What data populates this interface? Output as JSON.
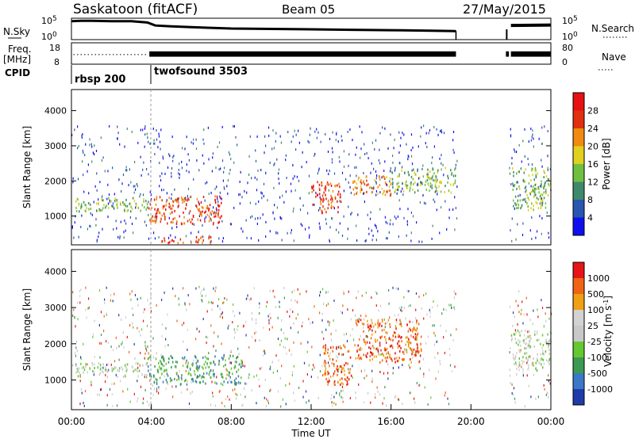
{
  "header": {
    "station": "Saskatoon (fitACF)",
    "beam": "Beam 05",
    "date": "27/May/2015"
  },
  "chart_data": [
    {
      "type": "line",
      "panel": "noise",
      "left_label": "N.Sky",
      "right_label": "N.Search",
      "left_ticks": [
        {
          "exp": "5",
          "text": "10^5",
          "y": 5
        },
        {
          "exp": "0",
          "text": "10^0",
          "y": 0
        }
      ],
      "right_ticks": [
        {
          "exp": "5",
          "text": "10^5",
          "y": 5
        },
        {
          "exp": "0",
          "text": "10^0",
          "y": 0
        }
      ],
      "ylim": [
        0,
        5
      ],
      "x_hours": [
        0.0,
        0.5,
        1.0,
        2.0,
        3.0,
        3.8,
        4.2,
        5.0,
        6.0,
        8.0,
        10.0,
        12.0,
        14.0,
        16.0,
        18.0,
        19.25
      ],
      "values": [
        4.3,
        4.4,
        4.4,
        4.3,
        4.3,
        4.0,
        3.3,
        3.1,
        2.9,
        2.6,
        2.5,
        2.4,
        2.3,
        2.2,
        2.1,
        2.0
      ],
      "segment2_hours": [
        22.0,
        24.0
      ],
      "segment2_values": [
        3.3,
        3.4
      ]
    },
    {
      "type": "line",
      "panel": "frequency",
      "left_label_lines": [
        "Freq.",
        "[MHz]"
      ],
      "right_label": "Nave",
      "left_ticks": [
        {
          "text": "18",
          "v": 18
        },
        {
          "text": "8",
          "v": 8
        }
      ],
      "right_ticks": [
        {
          "text": "80",
          "v": 80
        },
        {
          "text": "0",
          "v": 0
        }
      ],
      "ylim": [
        8,
        18
      ],
      "nave_dotted_hours": [
        0.1,
        3.8
      ],
      "nave_dotted_level": 12.5,
      "band_hours": [
        [
          3.9,
          19.25
        ],
        [
          21.75,
          21.9
        ],
        [
          22.0,
          24.0
        ]
      ],
      "band_range": [
        11.5,
        14.0
      ]
    },
    {
      "type": "table",
      "panel": "cpid",
      "label": "CPID",
      "segments": [
        {
          "text": "rbsp 200",
          "start_hour": 0.0
        },
        {
          "text": "twofsound 3503",
          "start_hour": 3.85
        }
      ]
    },
    {
      "type": "heatmap",
      "panel": "power",
      "ylabel": "Slant Range [km]",
      "yticks": [
        1000,
        2000,
        3000,
        4000
      ],
      "ylim": [
        180,
        4600
      ],
      "xlim_hours": [
        0,
        24
      ],
      "colorbar": {
        "label": "Power [dB]",
        "levels": [
          4,
          8,
          12,
          16,
          20,
          24,
          28
        ],
        "colors": [
          "#1010ee",
          "#2a55b0",
          "#3d8a6a",
          "#6fc040",
          "#e0d020",
          "#f08a10",
          "#e03010",
          "#e81010"
        ]
      },
      "echo_regions": [
        {
          "h0": 0.2,
          "h1": 3.8,
          "r0": 1150,
          "r1": 1550,
          "level": 3
        },
        {
          "h0": 3.8,
          "h1": 7.5,
          "r0": 800,
          "r1": 1600,
          "level": 6
        },
        {
          "h0": 4.5,
          "h1": 7.0,
          "r0": 250,
          "r1": 450,
          "level": 6
        },
        {
          "h0": 12.0,
          "h1": 13.5,
          "r0": 1100,
          "r1": 2000,
          "level": 6
        },
        {
          "h0": 14.0,
          "h1": 16.0,
          "r0": 1600,
          "r1": 2200,
          "level": 5
        },
        {
          "h0": 16.0,
          "h1": 19.2,
          "r0": 1700,
          "r1": 2400,
          "level": 3
        },
        {
          "h0": 22.0,
          "h1": 24.0,
          "r0": 1200,
          "r1": 2400,
          "level": 3
        }
      ]
    },
    {
      "type": "heatmap",
      "panel": "velocity",
      "ylabel": "Slant Range [km]",
      "yticks": [
        1000,
        2000,
        3000,
        4000
      ],
      "ylim": [
        180,
        4600
      ],
      "xlim_hours": [
        0,
        24
      ],
      "xticks": [
        "00:00",
        "04:00",
        "08:00",
        "12:00",
        "16:00",
        "20:00",
        "00:00"
      ],
      "xlabel": "Time UT",
      "colorbar": {
        "label": "Velocity [m s",
        "label_sup": "-1",
        "label_close": "]",
        "levels": [
          1000,
          500,
          100,
          25,
          -25,
          -100,
          -500,
          -1000
        ],
        "colors": [
          "#1e3ca8",
          "#3c78c8",
          "#3c9a50",
          "#64c830",
          "#c8c8c8",
          "#d2d2d2",
          "#f0a014",
          "#f06414",
          "#e61414"
        ]
      },
      "echo_regions": [
        {
          "h0": 0.2,
          "h1": 3.8,
          "r0": 1100,
          "r1": 1500,
          "level": 4
        },
        {
          "h0": 3.8,
          "h1": 8.5,
          "r0": 900,
          "r1": 1700,
          "level": 2
        },
        {
          "h0": 12.5,
          "h1": 14.0,
          "r0": 900,
          "r1": 2000,
          "level": 7
        },
        {
          "h0": 14.2,
          "h1": 17.5,
          "r0": 1500,
          "r1": 2700,
          "level": 7
        },
        {
          "h0": 22.0,
          "h1": 24.0,
          "r0": 1300,
          "r1": 2400,
          "level": 4
        }
      ]
    }
  ]
}
